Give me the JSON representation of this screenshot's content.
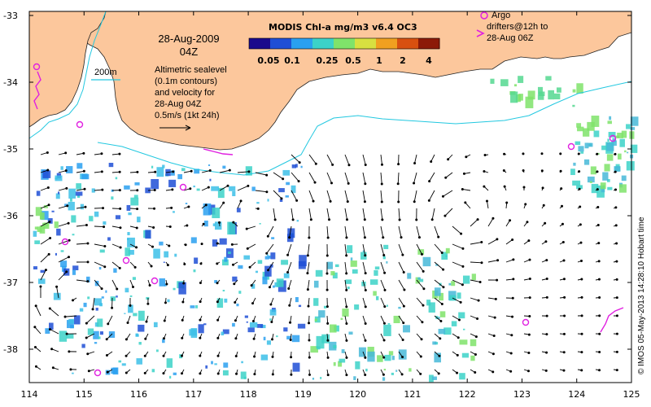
{
  "map": {
    "date": "28-Aug-2009",
    "time": "04Z",
    "isobath_label": "200m",
    "sealevel_lines": [
      "Altimetric sealevel",
      "(0.1m contours)",
      "and velocity for",
      "28-Aug 04Z"
    ],
    "velocity_scale_label": "0.5m/s (1kt 24h)",
    "colorbar_title": "MODIS Chl-a mg/m3 v6.4 OC3",
    "colorbar_ticks": [
      "0.05",
      "0.1",
      "0.25",
      "0.5",
      "1",
      "2",
      "4"
    ],
    "argo_lines": [
      "Argo",
      "drifters@12h to",
      "28-Aug 06Z"
    ],
    "credit": "© IMOS 05-May-2013 14:28:10 Hobart time",
    "x_ticks": [
      "114",
      "115",
      "116",
      "117",
      "118",
      "119",
      "120",
      "121",
      "122",
      "123",
      "124",
      "125"
    ],
    "y_ticks": [
      "-33",
      "-34",
      "-35",
      "-36",
      "-37",
      "-38"
    ],
    "colors": {
      "land": "#fcc79c",
      "isobath": "#22c8e0",
      "argo": "#e020e0",
      "colorbar": [
        "#1a0a8c",
        "#1f4fd6",
        "#2aa0f0",
        "#3cd2c8",
        "#7fe36a",
        "#d8e040",
        "#f0a020",
        "#d85010",
        "#8c1a08"
      ]
    }
  }
}
